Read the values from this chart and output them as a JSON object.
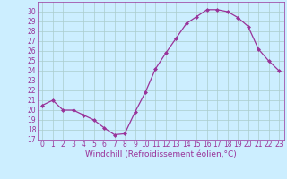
{
  "x": [
    0,
    1,
    2,
    3,
    4,
    5,
    6,
    7,
    8,
    9,
    10,
    11,
    12,
    13,
    14,
    15,
    16,
    17,
    18,
    19,
    20,
    21,
    22,
    23
  ],
  "y": [
    20.5,
    21.0,
    20.0,
    20.0,
    19.5,
    19.0,
    18.2,
    17.5,
    17.6,
    19.8,
    21.8,
    24.2,
    25.8,
    27.3,
    28.8,
    29.5,
    30.2,
    30.2,
    30.0,
    29.4,
    28.5,
    26.2,
    25.0,
    24.0
  ],
  "line_color": "#993399",
  "marker": "D",
  "marker_size": 2,
  "bg_color": "#cceeff",
  "grid_color": "#aacccc",
  "xlabel": "Windchill (Refroidissement éolien,°C)",
  "ylim": [
    17,
    31
  ],
  "xlim": [
    -0.5,
    23.5
  ],
  "yticks": [
    17,
    18,
    19,
    20,
    21,
    22,
    23,
    24,
    25,
    26,
    27,
    28,
    29,
    30
  ],
  "xticks": [
    0,
    1,
    2,
    3,
    4,
    5,
    6,
    7,
    8,
    9,
    10,
    11,
    12,
    13,
    14,
    15,
    16,
    17,
    18,
    19,
    20,
    21,
    22,
    23
  ],
  "tick_fontsize": 5.5,
  "xlabel_fontsize": 6.5,
  "label_color": "#993399"
}
